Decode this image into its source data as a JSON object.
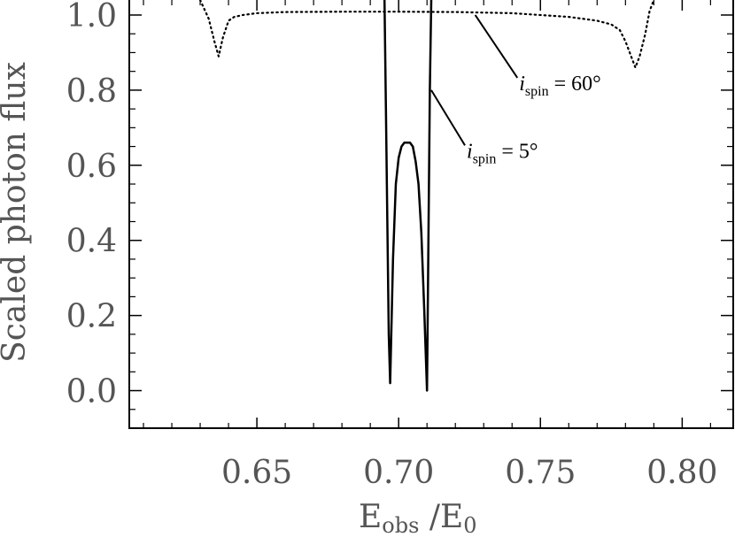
{
  "chart_data": {
    "type": "line",
    "xlabel": "E_obs / E_0",
    "xlabel_parts": {
      "main1": "E",
      "sub1": "obs",
      "sep": " /E",
      "sub2": "0"
    },
    "ylabel": "Scaled photon flux",
    "xlim": [
      0.605,
      0.818
    ],
    "ylim": [
      -0.1,
      1.04
    ],
    "x_ticks": [
      0.65,
      0.7,
      0.75,
      0.8
    ],
    "x_tick_labels": [
      "0.65",
      "0.70",
      "0.75",
      "0.80"
    ],
    "y_ticks": [
      0.0,
      0.2,
      0.4,
      0.6,
      0.8,
      1.0
    ],
    "y_tick_labels": [
      "0.0",
      "0.2",
      "0.4",
      "0.6",
      "0.8",
      "1.0"
    ],
    "grid": false,
    "series": [
      {
        "style": "solid",
        "x": [
          0.695,
          0.6955,
          0.696,
          0.6965,
          0.697,
          0.698,
          0.699,
          0.7,
          0.701,
          0.702,
          0.703,
          0.704,
          0.705,
          0.706,
          0.707,
          0.708,
          0.709,
          0.71,
          0.7105,
          0.711,
          0.7115
        ],
        "y": [
          1.04,
          0.75,
          0.45,
          0.15,
          0.02,
          0.35,
          0.55,
          0.62,
          0.65,
          0.66,
          0.66,
          0.66,
          0.65,
          0.61,
          0.55,
          0.42,
          0.22,
          0.0,
          0.4,
          0.8,
          1.04
        ]
      },
      {
        "style": "dotted",
        "x": [
          0.63,
          0.633,
          0.635,
          0.6365,
          0.638,
          0.64,
          0.642,
          0.645,
          0.65,
          0.66,
          0.68,
          0.7,
          0.72,
          0.74,
          0.76,
          0.77,
          0.775,
          0.778,
          0.78,
          0.782,
          0.7835,
          0.785,
          0.787,
          0.7885,
          0.79
        ],
        "y": [
          1.04,
          0.99,
          0.93,
          0.89,
          0.94,
          0.985,
          0.995,
          1.0,
          1.005,
          1.008,
          1.009,
          1.009,
          1.008,
          1.005,
          0.995,
          0.985,
          0.975,
          0.96,
          0.93,
          0.89,
          0.86,
          0.89,
          0.95,
          1.01,
          1.04
        ]
      }
    ],
    "annotations": [
      {
        "text_i": "i",
        "text_sub": "spin",
        "text_rest": " = 60°",
        "series_index": 1,
        "point": [
          0.727,
          1.0
        ],
        "label_anchor": [
          0.7425,
          0.8
        ]
      },
      {
        "text_i": "i",
        "text_sub": "spin",
        "text_rest": " = 5°",
        "series_index": 0,
        "point": [
          0.7115,
          0.8
        ],
        "label_anchor": [
          0.724,
          0.62
        ]
      }
    ]
  }
}
